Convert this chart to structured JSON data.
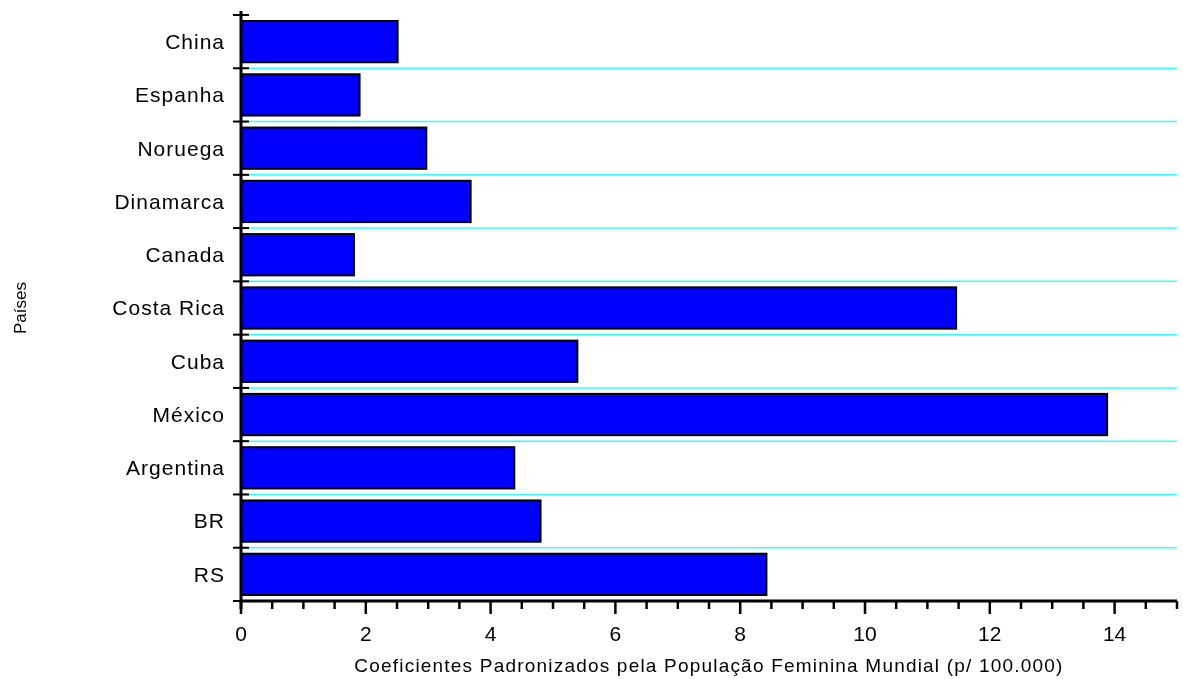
{
  "chart_data": {
    "type": "bar",
    "orientation": "horizontal",
    "xlabel": "Coeficientes Padronizados pela População Feminina Mundial (p/ 100.000)",
    "ylabel": "Países",
    "categories": [
      "China",
      "Espanha",
      "Noruega",
      "Dinamarca",
      "Canada",
      "Costa Rica",
      "Cuba",
      "México",
      "Argentina",
      "BR",
      "RS"
    ],
    "values": [
      2.51,
      1.9,
      2.97,
      3.68,
      1.81,
      11.46,
      5.39,
      13.88,
      4.38,
      4.8,
      8.42
    ],
    "color": "#0000ff",
    "xlim": [
      0,
      15
    ],
    "xticks": [
      0,
      {
        "value": 0.5,
        "label": null
      },
      {
        "value": 1,
        "label": null
      },
      {
        "value": 1.5,
        "label": null
      },
      2,
      {
        "value": 2.5,
        "label": null
      },
      {
        "value": 3,
        "label": null
      },
      {
        "value": 3.5,
        "label": null
      },
      4,
      {
        "value": 4.5,
        "label": null
      },
      {
        "value": 5,
        "label": null
      },
      {
        "value": 5.5,
        "label": null
      },
      6,
      {
        "value": 6.5,
        "label": null
      },
      {
        "value": 7,
        "label": null
      },
      {
        "value": 7.5,
        "label": null
      },
      8,
      {
        "value": 8.5,
        "label": null
      },
      {
        "value": 9,
        "label": null
      },
      {
        "value": 9.5,
        "label": null
      },
      10,
      {
        "value": 10.5,
        "label": null
      },
      {
        "value": 11,
        "label": null
      },
      {
        "value": 11.5,
        "label": null
      },
      12,
      {
        "value": 12.5,
        "label": null
      },
      {
        "value": 13,
        "label": null
      },
      {
        "value": 13.5,
        "label": null
      },
      14,
      {
        "value": 14.5,
        "label": null
      },
      {
        "value": 15,
        "label": null
      }
    ],
    "grid": "y"
  }
}
